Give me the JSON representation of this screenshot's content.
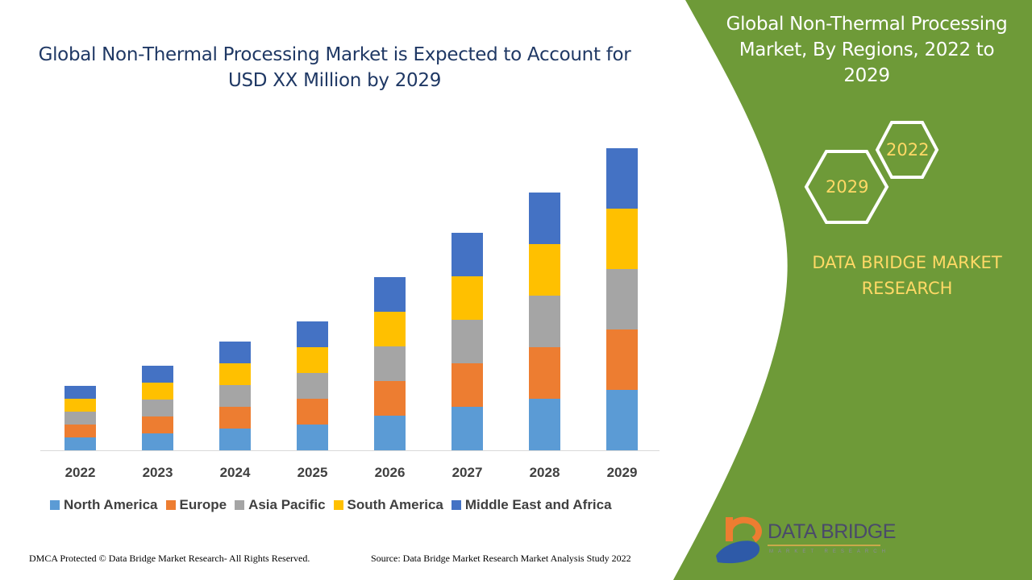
{
  "title": "Global Non-Thermal Processing Market is Expected to Account for USD XX Million by 2029",
  "side_panel": {
    "title": "Global Non-Thermal Processing Market, By Regions, 2022 to 2029",
    "hex_labels": [
      "2022",
      "2029"
    ],
    "brand": "DATA BRIDGE MARKET RESEARCH",
    "logo_text": "DATA BRIDGE",
    "logo_sub": "MARKET RESEARCH",
    "color": "#6e9a38"
  },
  "footer": {
    "left": "DMCA Protected © Data Bridge Market Research- All Rights Reserved.",
    "right": "Source: Data Bridge Market Research Market Analysis Study 2022"
  },
  "chart_data": {
    "type": "bar",
    "stacked": true,
    "title": "Global Non-Thermal Processing Market is Expected to Account for USD XX Million by 2029",
    "categories": [
      "2022",
      "2023",
      "2024",
      "2025",
      "2026",
      "2027",
      "2028",
      "2029"
    ],
    "series": [
      {
        "name": "North America",
        "color": "#5b9bd5",
        "values": [
          16,
          21,
          27,
          32,
          43,
          54,
          64,
          75
        ]
      },
      {
        "name": "Europe",
        "color": "#ed7d31",
        "values": [
          16,
          21,
          27,
          32,
          43,
          54,
          64,
          75
        ]
      },
      {
        "name": "Asia Pacific",
        "color": "#a5a5a5",
        "values": [
          16,
          21,
          27,
          32,
          43,
          54,
          64,
          75
        ]
      },
      {
        "name": "South America",
        "color": "#ffc000",
        "values": [
          16,
          21,
          27,
          32,
          43,
          54,
          64,
          75
        ]
      },
      {
        "name": "Middle East and Africa",
        "color": "#4472c4",
        "values": [
          16,
          21,
          27,
          32,
          43,
          54,
          64,
          75
        ]
      }
    ],
    "ylim": [
      0,
      375
    ],
    "y_axis_shown": false,
    "grid": false,
    "legend": "bottom"
  }
}
